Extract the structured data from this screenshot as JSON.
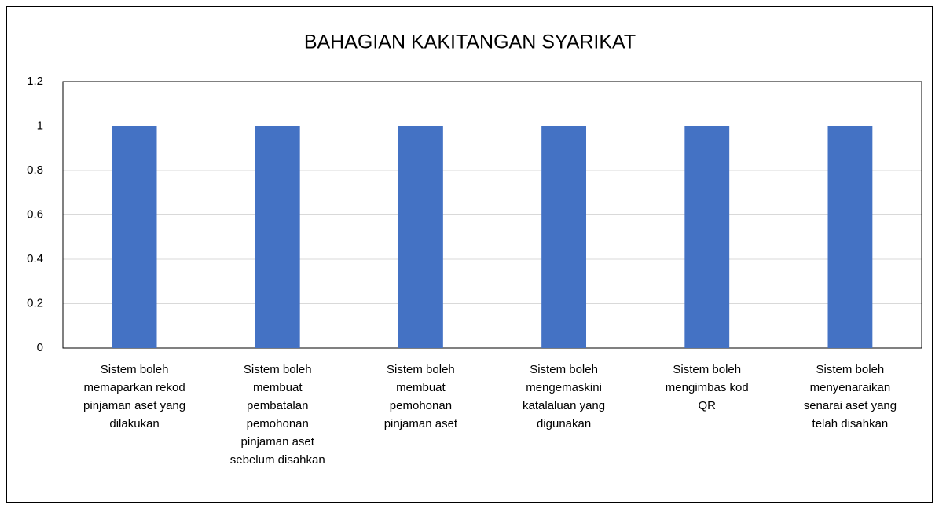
{
  "chart_data": {
    "type": "bar",
    "title": "BAHAGIAN KAKITANGAN SYARIKAT",
    "categories": [
      "Sistem boleh memaparkan rekod pinjaman aset yang dilakukan",
      "Sistem boleh membuat pembatalan pemohonan pinjaman aset sebelum disahkan",
      "Sistem boleh membuat pemohonan pinjaman aset",
      "Sistem boleh mengemaskini katalaluan yang digunakan",
      "Sistem boleh mengimbas kod QR",
      "Sistem boleh menyenaraikan senarai aset yang telah disahkan"
    ],
    "values": [
      1,
      1,
      1,
      1,
      1,
      1
    ],
    "color": "#4472c4",
    "ylim": [
      0,
      1.2
    ],
    "yticks": [
      0,
      0.2,
      0.4,
      0.6,
      0.8,
      1,
      1.2
    ],
    "grid": true
  }
}
